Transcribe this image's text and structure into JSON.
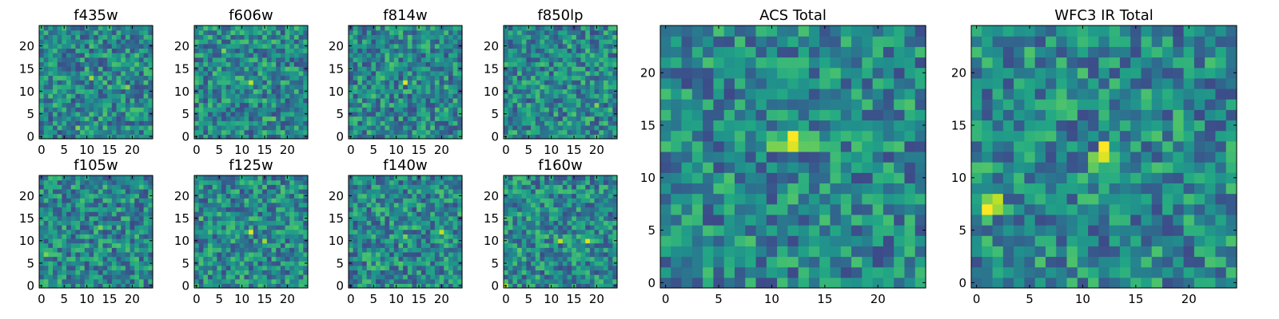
{
  "chart_data": [
    {
      "type": "heatmap",
      "title": "f435w",
      "x": [
        0,
        24
      ],
      "y": [
        0,
        24
      ],
      "xticks": [
        "0",
        "5",
        "10",
        "15",
        "20"
      ],
      "yticks": [
        "0",
        "5",
        "10",
        "15",
        "20"
      ],
      "colormap": "viridis",
      "features": [
        {
          "x": 11,
          "y": 13,
          "level": 0.85
        },
        {
          "x": 8,
          "y": 2,
          "level": 0.8
        },
        {
          "x": 19,
          "y": 11,
          "level": 0.8
        }
      ]
    },
    {
      "type": "heatmap",
      "title": "f606w",
      "x": [
        0,
        24
      ],
      "y": [
        0,
        24
      ],
      "xticks": [
        "0",
        "5",
        "10",
        "15",
        "20"
      ],
      "yticks": [
        "0",
        "5",
        "10",
        "15",
        "20"
      ],
      "colormap": "viridis",
      "features": [
        {
          "x": 12,
          "y": 12,
          "level": 0.9
        },
        {
          "x": 6,
          "y": 19,
          "level": 0.8
        },
        {
          "x": 17,
          "y": 4,
          "level": 0.75
        }
      ]
    },
    {
      "type": "heatmap",
      "title": "f814w",
      "x": [
        0,
        24
      ],
      "y": [
        0,
        24
      ],
      "xticks": [
        "0",
        "5",
        "10",
        "15",
        "20"
      ],
      "yticks": [
        "0",
        "5",
        "10",
        "15",
        "20"
      ],
      "colormap": "viridis",
      "features": [
        {
          "x": 12,
          "y": 12,
          "level": 0.95
        },
        {
          "x": 14,
          "y": 12,
          "level": 0.7
        }
      ]
    },
    {
      "type": "heatmap",
      "title": "f850lp",
      "x": [
        0,
        24
      ],
      "y": [
        0,
        24
      ],
      "xticks": [
        "0",
        "5",
        "10",
        "15",
        "20"
      ],
      "yticks": [
        "0",
        "5",
        "10",
        "15",
        "20"
      ],
      "colormap": "viridis",
      "features": [
        {
          "x": 20,
          "y": 7,
          "level": 0.8
        },
        {
          "x": 12,
          "y": 12,
          "level": 0.6
        }
      ]
    },
    {
      "type": "heatmap",
      "title": "f105w",
      "x": [
        0,
        24
      ],
      "y": [
        0,
        24
      ],
      "xticks": [
        "0",
        "5",
        "10",
        "15",
        "20"
      ],
      "yticks": [
        "0",
        "5",
        "10",
        "15",
        "20"
      ],
      "colormap": "viridis",
      "features": [
        {
          "x": 13,
          "y": 13,
          "level": 0.8
        },
        {
          "x": 1,
          "y": 7,
          "level": 0.8
        }
      ]
    },
    {
      "type": "heatmap",
      "title": "f125w",
      "x": [
        0,
        24
      ],
      "y": [
        0,
        24
      ],
      "xticks": [
        "0",
        "5",
        "10",
        "15",
        "20"
      ],
      "yticks": [
        "0",
        "5",
        "10",
        "15",
        "20"
      ],
      "colormap": "viridis",
      "features": [
        {
          "x": 12,
          "y": 12,
          "level": 0.95
        },
        {
          "x": 15,
          "y": 10,
          "level": 0.85
        },
        {
          "x": 1,
          "y": 15,
          "level": 0.75
        }
      ]
    },
    {
      "type": "heatmap",
      "title": "f140w",
      "x": [
        0,
        24
      ],
      "y": [
        0,
        24
      ],
      "xticks": [
        "0",
        "5",
        "10",
        "15",
        "20"
      ],
      "yticks": [
        "0",
        "5",
        "10",
        "15",
        "20"
      ],
      "colormap": "viridis",
      "features": [
        {
          "x": 20,
          "y": 12,
          "level": 0.9
        },
        {
          "x": 12,
          "y": 11,
          "level": 0.8
        },
        {
          "x": 7,
          "y": 15,
          "level": 0.7
        }
      ]
    },
    {
      "type": "heatmap",
      "title": "f160w",
      "x": [
        0,
        24
      ],
      "y": [
        0,
        24
      ],
      "xticks": [
        "0",
        "5",
        "10",
        "15",
        "20"
      ],
      "yticks": [
        "0",
        "5",
        "10",
        "15",
        "20"
      ],
      "colormap": "viridis",
      "features": [
        {
          "x": 18,
          "y": 10,
          "level": 0.95
        },
        {
          "x": 12,
          "y": 10,
          "level": 0.9
        },
        {
          "x": 0,
          "y": 0,
          "level": 0.9
        },
        {
          "x": 3,
          "y": 8,
          "level": 0.75
        }
      ]
    },
    {
      "type": "heatmap",
      "title": "ACS Total",
      "x": [
        0,
        24
      ],
      "y": [
        0,
        24
      ],
      "xticks": [
        "0",
        "5",
        "10",
        "15",
        "20"
      ],
      "yticks": [
        "0",
        "5",
        "10",
        "15",
        "20"
      ],
      "colormap": "viridis",
      "features": [
        {
          "x": 12,
          "y": 14,
          "level": 1.0
        },
        {
          "x": 12,
          "y": 13,
          "level": 0.95
        },
        {
          "x": 10,
          "y": 13,
          "level": 0.8
        },
        {
          "x": 11,
          "y": 13,
          "level": 0.8
        },
        {
          "x": 13,
          "y": 13,
          "level": 0.75
        },
        {
          "x": 14,
          "y": 13,
          "level": 0.75
        }
      ]
    },
    {
      "type": "heatmap",
      "title": "WFC3 IR Total",
      "x": [
        0,
        24
      ],
      "y": [
        0,
        24
      ],
      "xticks": [
        "0",
        "5",
        "10",
        "15",
        "20"
      ],
      "yticks": [
        "0",
        "5",
        "10",
        "15",
        "20"
      ],
      "colormap": "viridis",
      "features": [
        {
          "x": 12,
          "y": 13,
          "level": 1.0
        },
        {
          "x": 12,
          "y": 12,
          "level": 0.95
        },
        {
          "x": 11,
          "y": 12,
          "level": 0.8
        },
        {
          "x": 11,
          "y": 11,
          "level": 0.75
        },
        {
          "x": 1,
          "y": 7,
          "level": 1.0
        },
        {
          "x": 2,
          "y": 8,
          "level": 0.9
        },
        {
          "x": 2,
          "y": 7,
          "level": 0.85
        },
        {
          "x": 1,
          "y": 8,
          "level": 0.8
        }
      ]
    }
  ]
}
